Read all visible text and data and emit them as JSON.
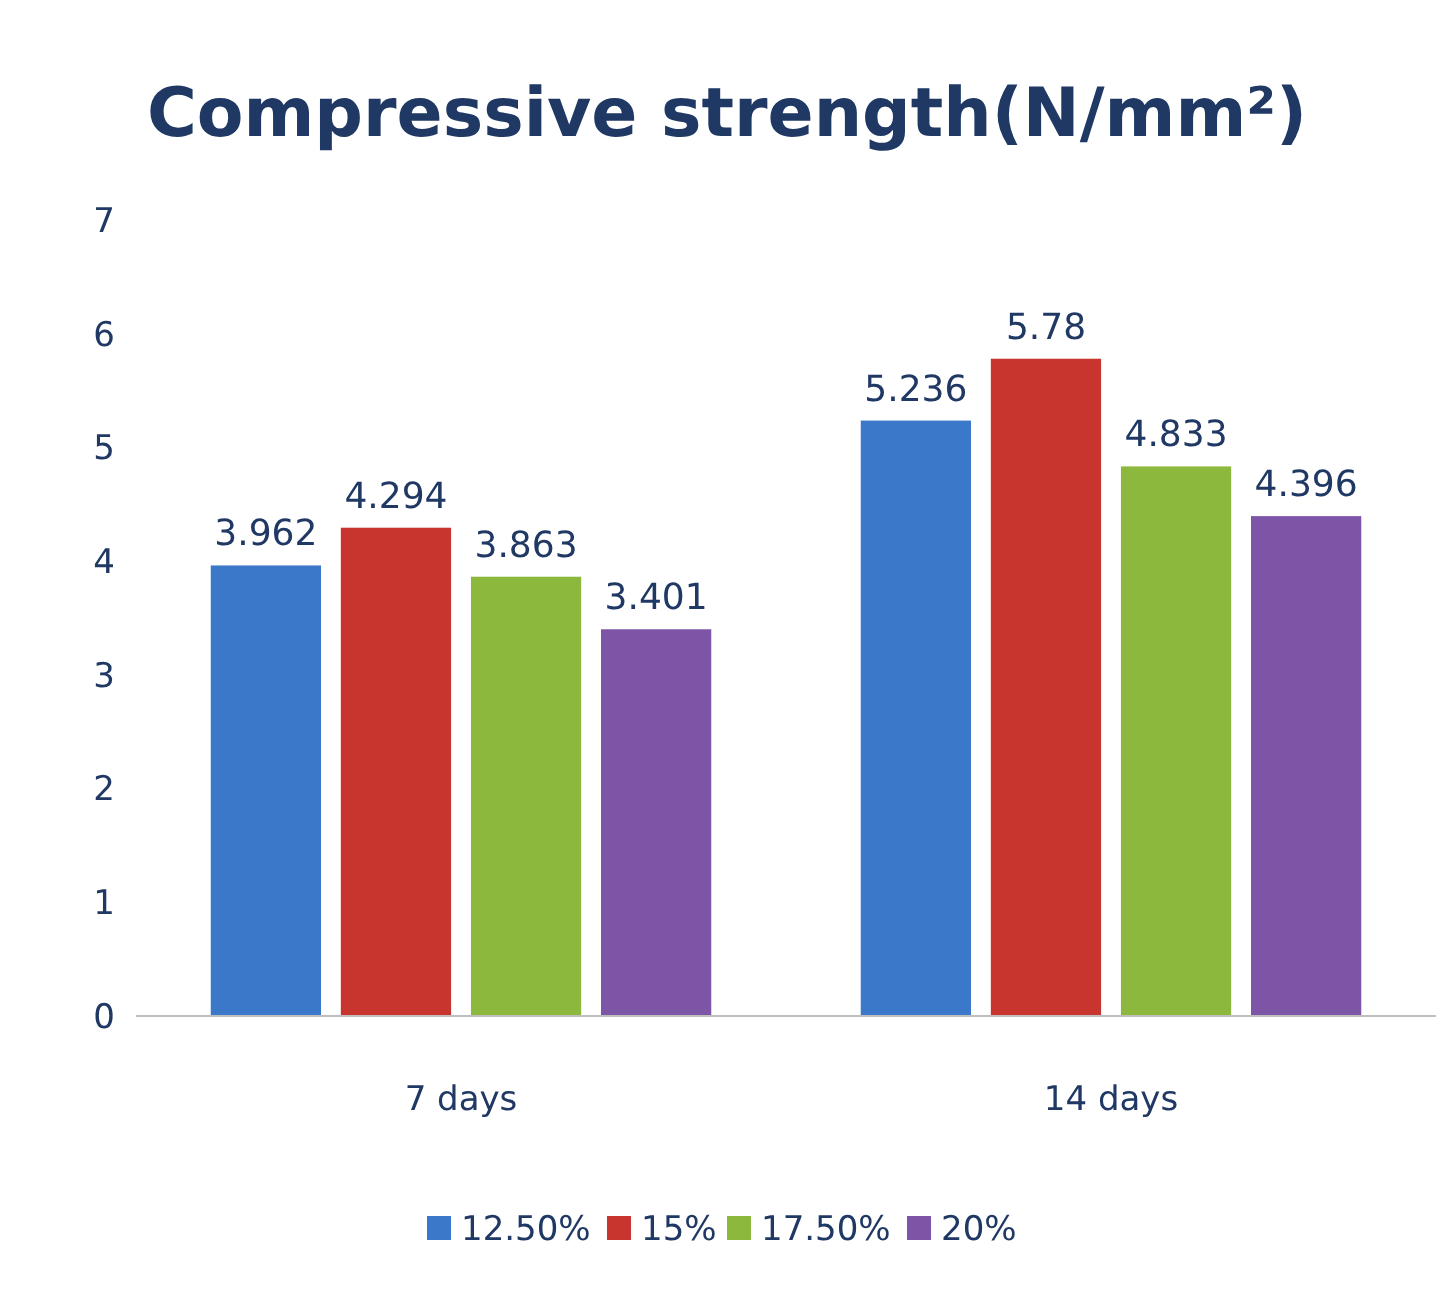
{
  "chart_data": {
    "type": "bar",
    "title": "Compressive strength(N/mm²)",
    "categories": [
      "7 days",
      "14 days"
    ],
    "series": [
      {
        "name": "12.50%",
        "color": "#3b78c9",
        "values": [
          3.962,
          5.236
        ]
      },
      {
        "name": "15%",
        "color": "#c8352f",
        "values": [
          4.294,
          5.78
        ]
      },
      {
        "name": "17.50%",
        "color": "#8cb83d",
        "values": [
          3.863,
          4.833
        ]
      },
      {
        "name": "20%",
        "color": "#7c55a6",
        "values": [
          3.401,
          4.396
        ]
      }
    ],
    "ylim": [
      0,
      7
    ],
    "yticks": [
      0,
      1,
      2,
      3,
      4,
      5,
      6,
      7
    ],
    "grid": false,
    "legend": "bottom",
    "data_labels": true
  }
}
